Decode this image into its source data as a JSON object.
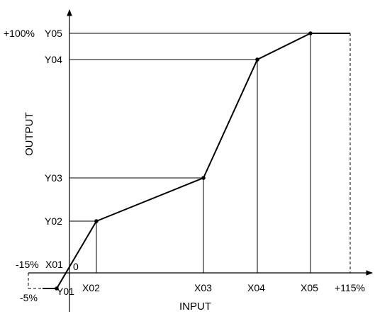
{
  "diagram": {
    "axes": {
      "x_title": "INPUT",
      "y_title": "OUTPUT",
      "origin_label": "0"
    },
    "x_labels": {
      "x01": "X01",
      "x02": "X02",
      "x03": "X03",
      "x04": "X04",
      "x05": "X05",
      "pct_max": "+115%",
      "pct_min": "-15%"
    },
    "y_labels": {
      "y01": "Y01",
      "y02": "Y02",
      "y03": "Y03",
      "y04": "Y04",
      "y05": "Y05",
      "pct_max": "+100%",
      "pct_min": "-5%"
    },
    "line_color": "#000000"
  }
}
